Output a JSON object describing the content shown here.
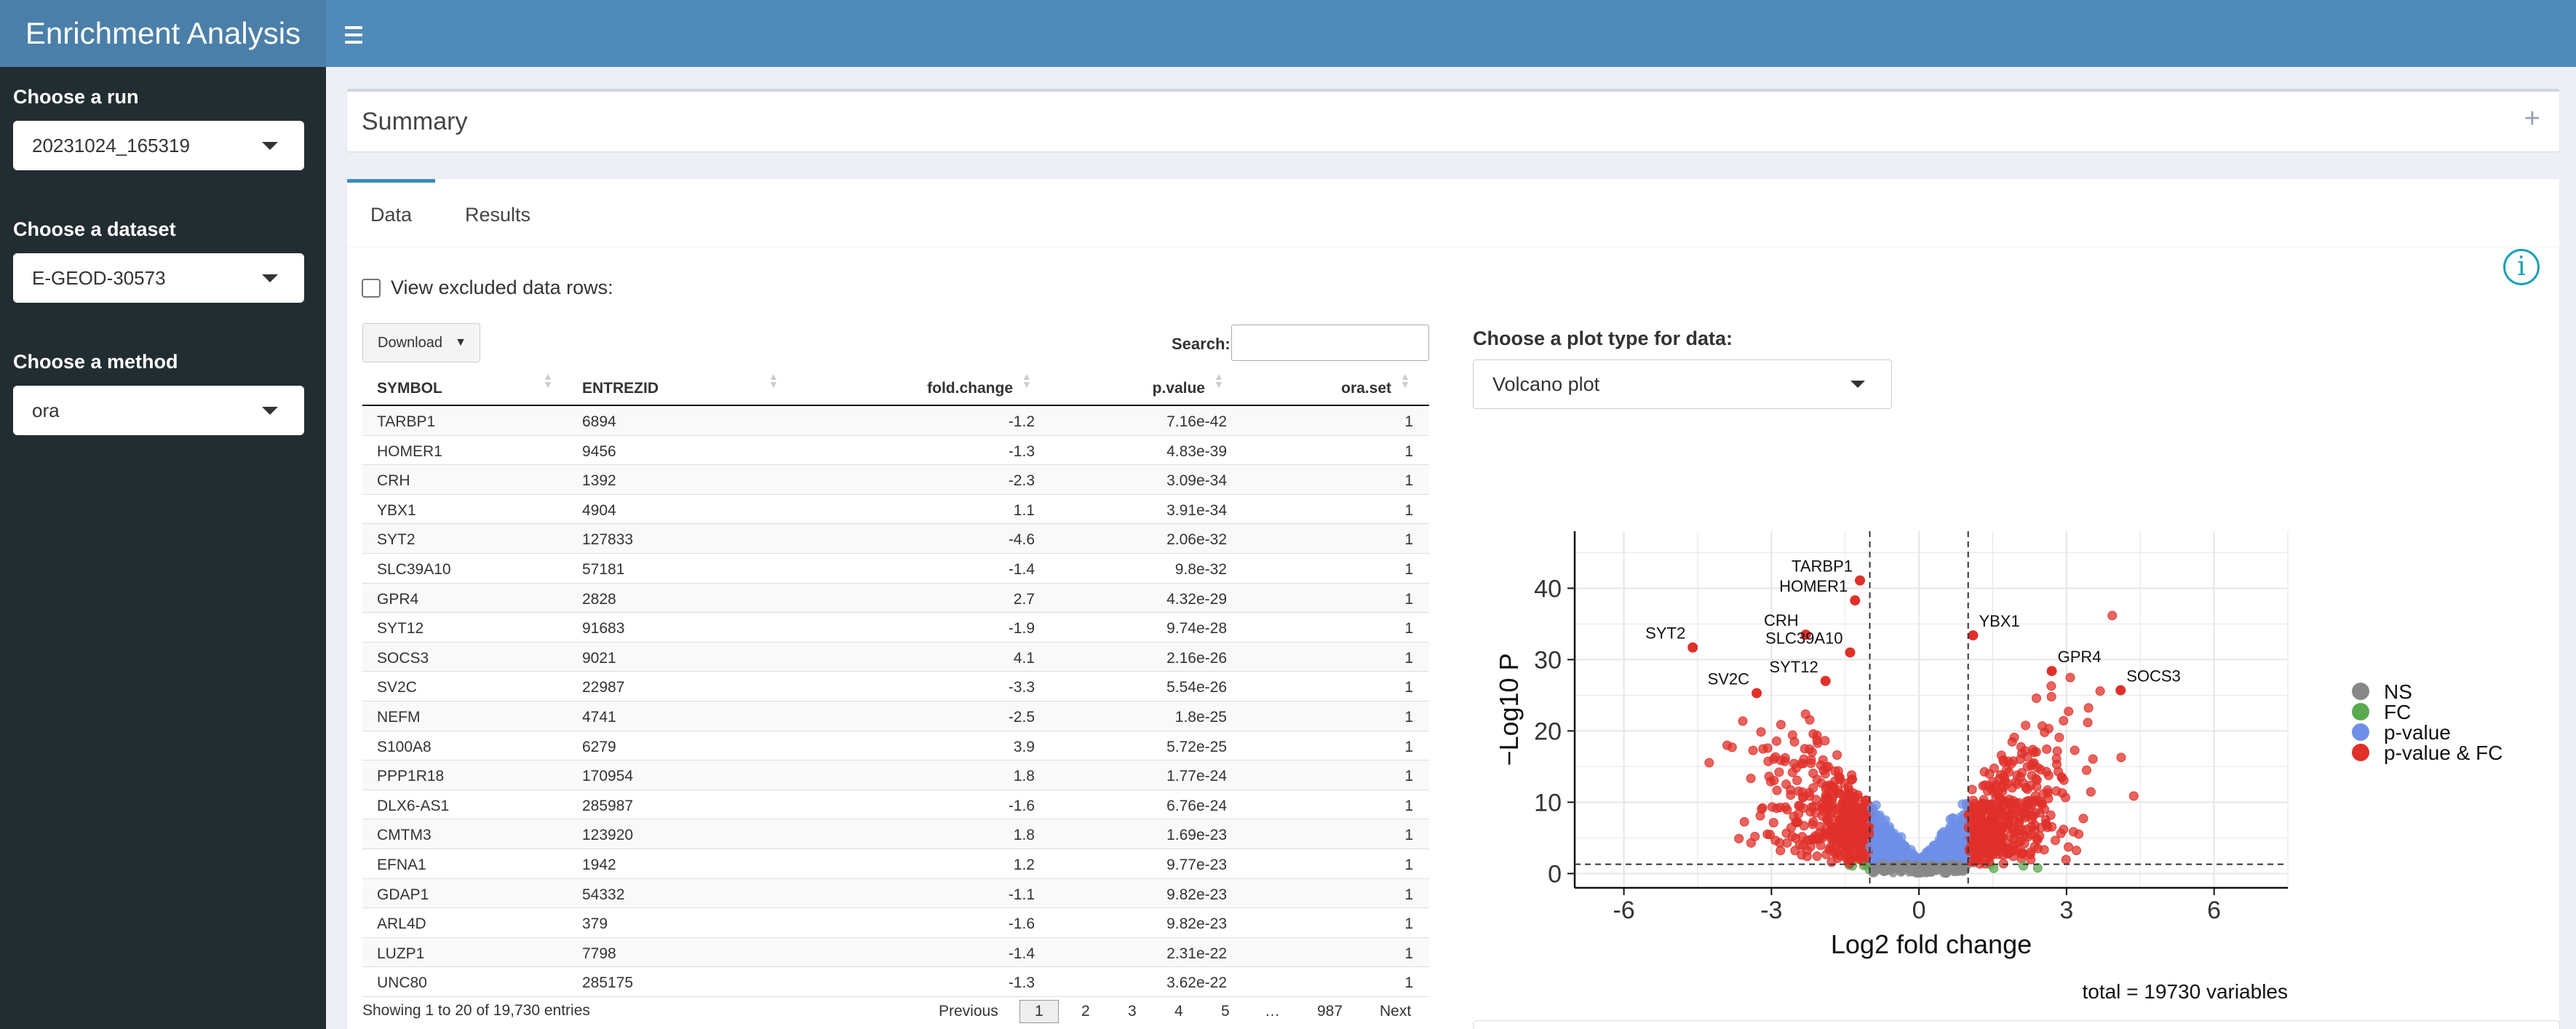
{
  "app": {
    "title": "Enrichment Analysis"
  },
  "sidebar": {
    "run_label": "Choose a run",
    "run_value": "20231024_165319",
    "dataset_label": "Choose a dataset",
    "dataset_value": "E-GEOD-30573",
    "method_label": "Choose a method",
    "method_value": "ora"
  },
  "summary": {
    "title": "Summary",
    "toggle": "+"
  },
  "tabs": [
    {
      "label": "Data"
    },
    {
      "label": "Results"
    }
  ],
  "data_tab": {
    "view_excluded_label": "View excluded data rows:",
    "download_label": "Download",
    "search_label": "Search:",
    "search_value": "",
    "table": {
      "columns": [
        "SYMBOL",
        "ENTREZID",
        "fold.change",
        "p.value",
        "ora.set"
      ],
      "rows": [
        [
          "TARBP1",
          "6894",
          "-1.2",
          "7.16e-42",
          "1"
        ],
        [
          "HOMER1",
          "9456",
          "-1.3",
          "4.83e-39",
          "1"
        ],
        [
          "CRH",
          "1392",
          "-2.3",
          "3.09e-34",
          "1"
        ],
        [
          "YBX1",
          "4904",
          "1.1",
          "3.91e-34",
          "1"
        ],
        [
          "SYT2",
          "127833",
          "-4.6",
          "2.06e-32",
          "1"
        ],
        [
          "SLC39A10",
          "57181",
          "-1.4",
          "9.8e-32",
          "1"
        ],
        [
          "GPR4",
          "2828",
          "2.7",
          "4.32e-29",
          "1"
        ],
        [
          "SYT12",
          "91683",
          "-1.9",
          "9.74e-28",
          "1"
        ],
        [
          "SOCS3",
          "9021",
          "4.1",
          "2.16e-26",
          "1"
        ],
        [
          "SV2C",
          "22987",
          "-3.3",
          "5.54e-26",
          "1"
        ],
        [
          "NEFM",
          "4741",
          "-2.5",
          "1.8e-25",
          "1"
        ],
        [
          "S100A8",
          "6279",
          "3.9",
          "5.72e-25",
          "1"
        ],
        [
          "PPP1R18",
          "170954",
          "1.8",
          "1.77e-24",
          "1"
        ],
        [
          "DLX6-AS1",
          "285987",
          "-1.6",
          "6.76e-24",
          "1"
        ],
        [
          "CMTM3",
          "123920",
          "1.8",
          "1.69e-23",
          "1"
        ],
        [
          "EFNA1",
          "1942",
          "1.2",
          "9.77e-23",
          "1"
        ],
        [
          "GDAP1",
          "54332",
          "-1.1",
          "9.82e-23",
          "1"
        ],
        [
          "ARL4D",
          "379",
          "-1.6",
          "9.82e-23",
          "1"
        ],
        [
          "LUZP1",
          "7798",
          "-1.4",
          "2.31e-22",
          "1"
        ],
        [
          "UNC80",
          "285175",
          "-1.3",
          "3.62e-22",
          "1"
        ]
      ]
    },
    "info": "Showing 1 to 20 of 19,730 entries",
    "pagination": {
      "previous": "Previous",
      "pages": [
        "1",
        "2",
        "3",
        "4",
        "5",
        "…",
        "987"
      ],
      "next": "Next"
    },
    "plot_type_label": "Choose a plot type for data:",
    "plot_type_value": "Volcano plot"
  },
  "chart_data": {
    "type": "scatter",
    "title": "",
    "xlabel": "Log2 fold change",
    "ylabel": "−Log10 P",
    "xlim": [
      -7,
      7.5
    ],
    "ylim": [
      -2,
      48
    ],
    "xticks": [
      -6,
      -3,
      0,
      3,
      6
    ],
    "yticks": [
      0,
      10,
      20,
      30,
      40
    ],
    "fc_cutoff": 1,
    "p_cutoff_log10": 1.3,
    "legend_position": "right",
    "caption": "total = 19730 variables",
    "legend": [
      {
        "name": "NS",
        "color": "#888888"
      },
      {
        "name": "FC",
        "color": "#5aa84f"
      },
      {
        "name": "p-value",
        "color": "#6f8fe8"
      },
      {
        "name": "p-value & FC",
        "color": "#e0302a"
      }
    ],
    "labeled_points": [
      {
        "label": "TARBP1",
        "x": -1.2,
        "y": 41.1
      },
      {
        "label": "HOMER1",
        "x": -1.3,
        "y": 38.3
      },
      {
        "label": "CRH",
        "x": -2.3,
        "y": 33.5
      },
      {
        "label": "YBX1",
        "x": 1.1,
        "y": 33.4
      },
      {
        "label": "SYT2",
        "x": -4.6,
        "y": 31.7
      },
      {
        "label": "SLC39A10",
        "x": -1.4,
        "y": 31.0
      },
      {
        "label": "GPR4",
        "x": 2.7,
        "y": 28.4
      },
      {
        "label": "SYT12",
        "x": -1.9,
        "y": 27.0
      },
      {
        "label": "SOCS3",
        "x": 4.1,
        "y": 25.7
      },
      {
        "label": "SV2C",
        "x": -3.3,
        "y": 25.3
      }
    ]
  }
}
